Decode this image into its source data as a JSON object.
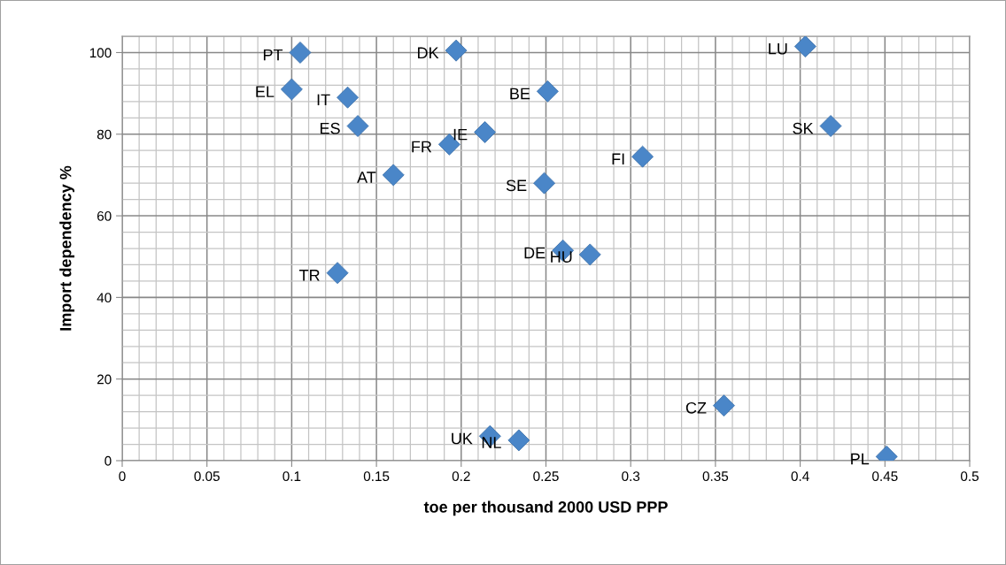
{
  "chart_data": {
    "type": "scatter",
    "xlabel": "toe per thousand 2000 USD PPP",
    "ylabel": "Import dependency %",
    "x": [
      0.105,
      0.1,
      0.133,
      0.139,
      0.16,
      0.193,
      0.214,
      0.197,
      0.251,
      0.249,
      0.26,
      0.276,
      0.307,
      0.403,
      0.418,
      0.127,
      0.217,
      0.234,
      0.355,
      0.451
    ],
    "series": [
      {
        "color": "#4a86c8",
        "values": [
          100,
          91,
          89,
          82,
          70,
          77.5,
          80.5,
          100.5,
          90.5,
          68,
          51.5,
          50.5,
          74.5,
          101.5,
          82,
          46,
          6,
          5,
          13.5,
          1
        ]
      }
    ],
    "annotations": [
      {
        "text": "PT",
        "x": 0.105,
        "y": 100
      },
      {
        "text": "EL",
        "x": 0.1,
        "y": 91
      },
      {
        "text": "IT",
        "x": 0.133,
        "y": 89
      },
      {
        "text": "ES",
        "x": 0.139,
        "y": 82
      },
      {
        "text": "AT",
        "x": 0.16,
        "y": 70
      },
      {
        "text": "FR",
        "x": 0.193,
        "y": 77.5
      },
      {
        "text": "IE",
        "x": 0.214,
        "y": 80.5
      },
      {
        "text": "DK",
        "x": 0.197,
        "y": 100.5
      },
      {
        "text": "BE",
        "x": 0.251,
        "y": 90.5
      },
      {
        "text": "SE",
        "x": 0.249,
        "y": 68
      },
      {
        "text": "DE",
        "x": 0.26,
        "y": 51.5
      },
      {
        "text": "HU",
        "x": 0.276,
        "y": 50.5
      },
      {
        "text": "FI",
        "x": 0.307,
        "y": 74.5
      },
      {
        "text": "LU",
        "x": 0.403,
        "y": 101.5
      },
      {
        "text": "SK",
        "x": 0.418,
        "y": 82
      },
      {
        "text": "TR",
        "x": 0.127,
        "y": 46
      },
      {
        "text": "UK",
        "x": 0.217,
        "y": 6
      },
      {
        "text": "NL",
        "x": 0.234,
        "y": 5
      },
      {
        "text": "CZ",
        "x": 0.355,
        "y": 13.5
      },
      {
        "text": "PL",
        "x": 0.451,
        "y": 1
      }
    ],
    "xlim": [
      0,
      0.5
    ],
    "xticks": [
      0,
      0.05,
      0.1,
      0.15,
      0.2,
      0.25,
      0.3,
      0.35,
      0.4,
      0.45,
      0.5
    ],
    "ylim": [
      0,
      104
    ],
    "yticks": [
      0,
      20,
      40,
      60,
      80,
      100
    ],
    "grid": true,
    "marker": "diamond",
    "legend": false
  }
}
